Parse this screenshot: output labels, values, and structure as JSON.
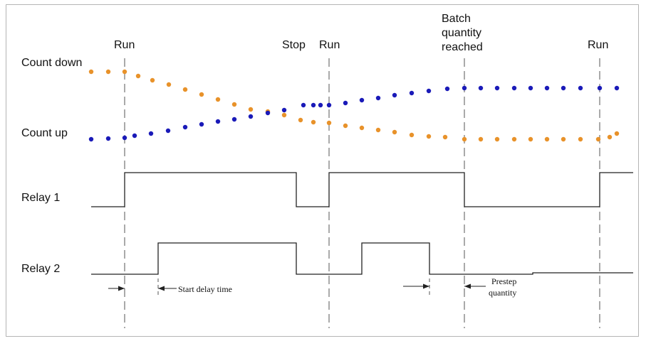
{
  "rows": {
    "count_down": "Count down",
    "count_up": "Count up",
    "relay1": "Relay 1",
    "relay2": "Relay 2"
  },
  "events": {
    "run1": "Run",
    "stop": "Stop",
    "run2": "Run",
    "batch": [
      "Batch",
      "quantity",
      "reached"
    ],
    "run3": "Run"
  },
  "annotations": {
    "start_delay": "Start delay time",
    "prestep": [
      "Prestep",
      "quantity"
    ]
  },
  "colors": {
    "count_down_dots": "#E8922A",
    "count_up_dots": "#1A1AB8",
    "lines": "#222222",
    "dashed": "#555555"
  }
}
